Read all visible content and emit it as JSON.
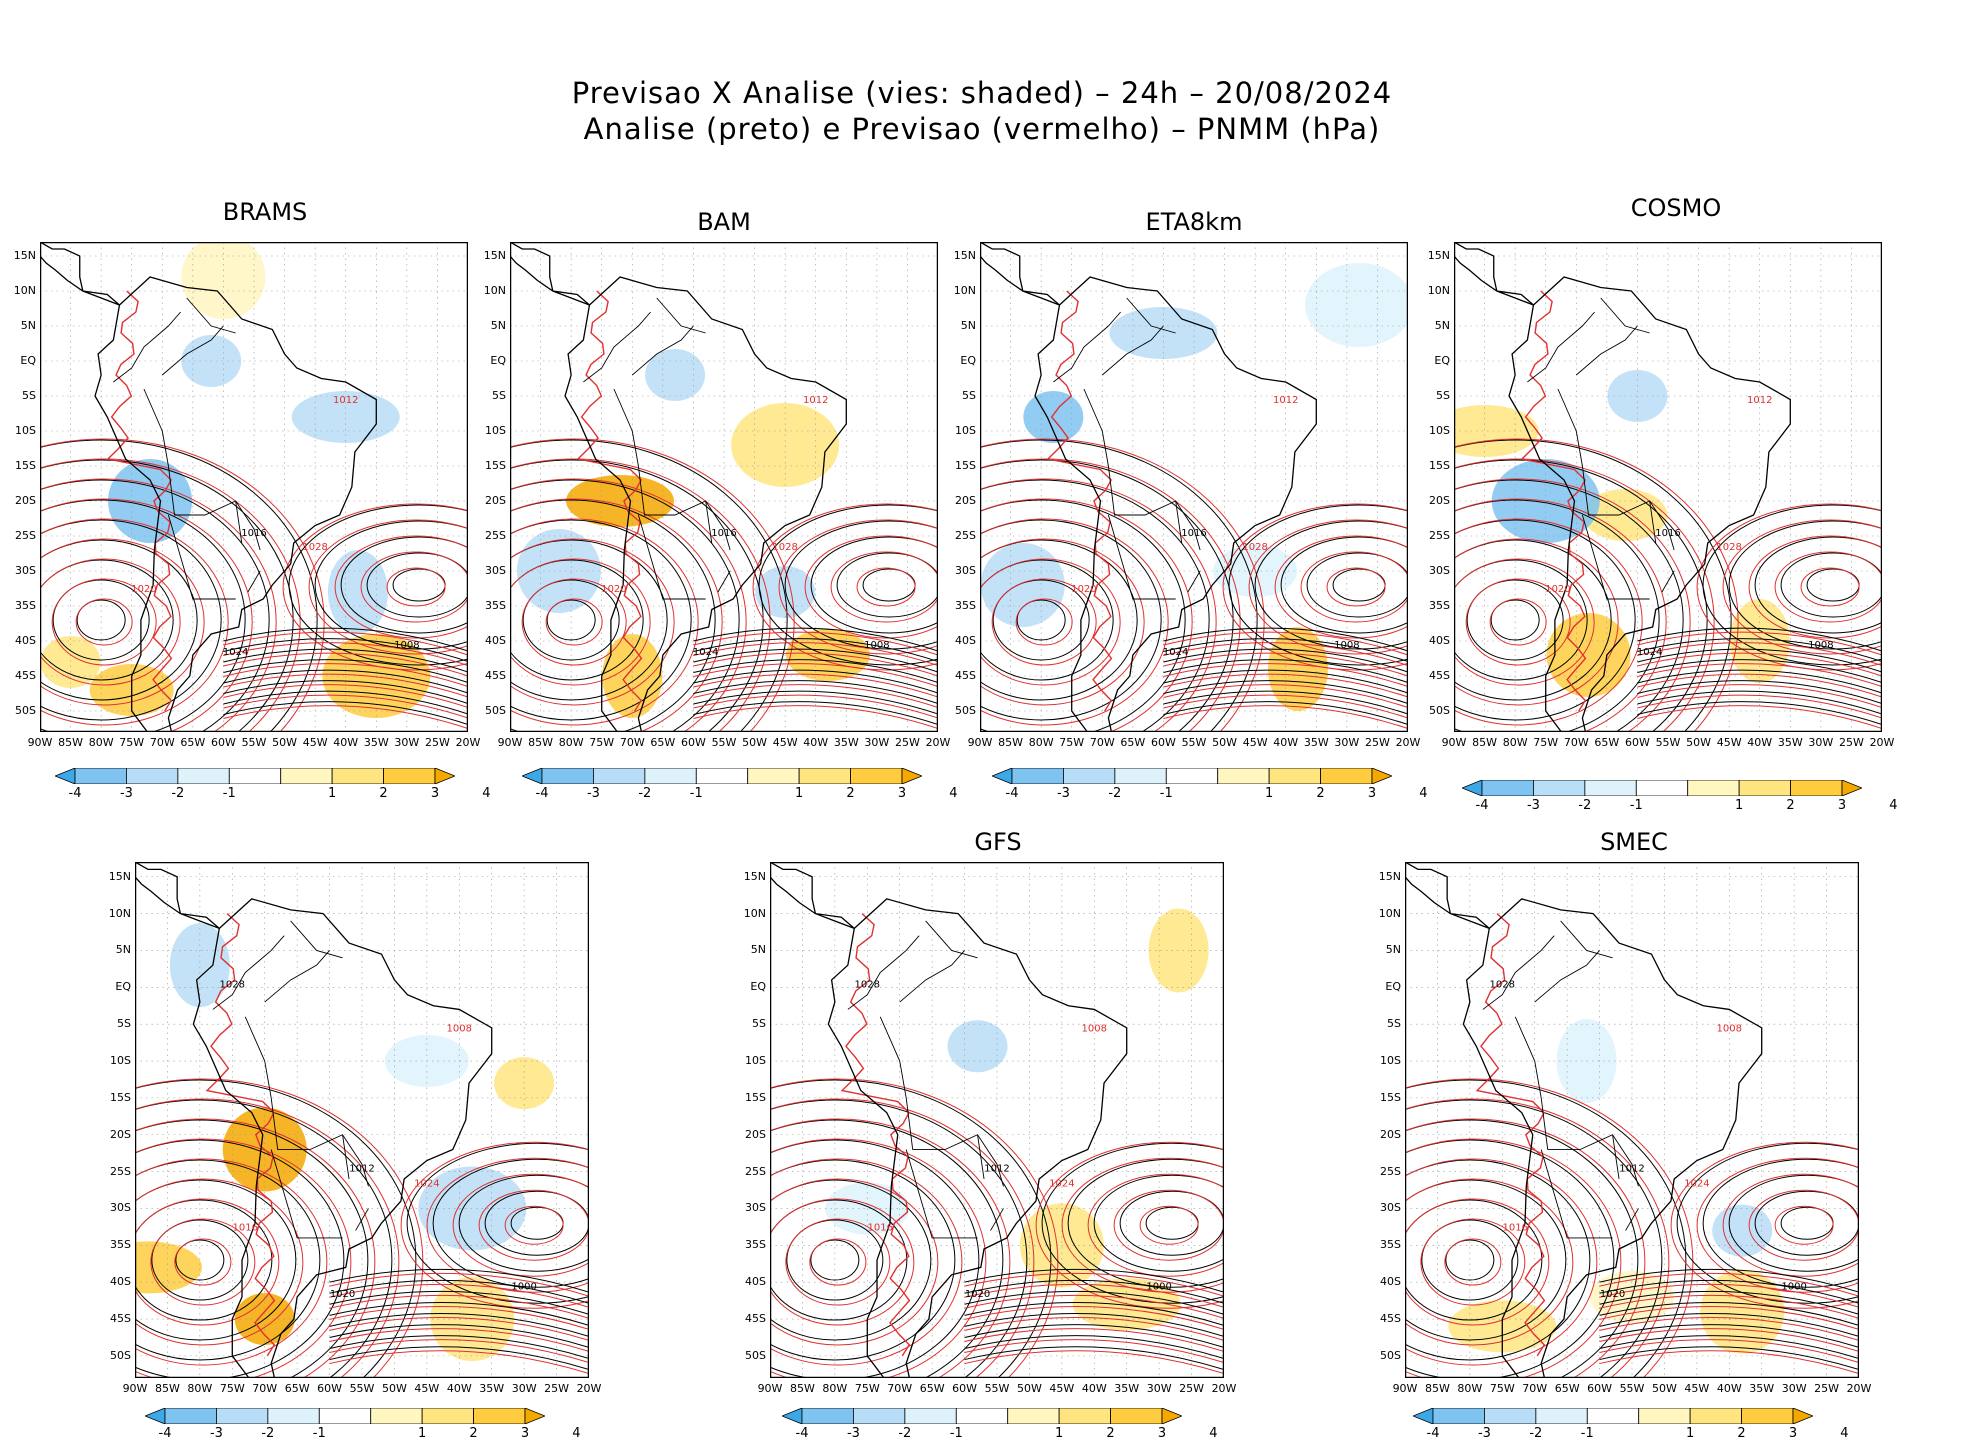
{
  "title_line1": "Previsao X Analise (vies: shaded) – 24h – 20/08/2024",
  "title_line2": "Analise (preto) e Previsao (vermelho) – PNMM (hPa)",
  "colors": {
    "analysis_contour": "#000000",
    "forecast_contour": "#e03030",
    "neg4": "#3ca8e8",
    "neg3": "#7fc3f0",
    "neg2": "#b8ddf6",
    "neg1": "#ddf2fb",
    "zero": "#ffffff",
    "pos1": "#fff6c0",
    "pos2": "#ffe580",
    "pos3": "#ffcc40",
    "pos4": "#f5a800"
  },
  "chart_data": {
    "type": "map-panels",
    "field": "PNMM bias (forecast minus analysis)",
    "units": "hPa",
    "lat_ticks": [
      "15N",
      "10N",
      "5N",
      "EQ",
      "5S",
      "10S",
      "15S",
      "20S",
      "25S",
      "30S",
      "35S",
      "40S",
      "45S",
      "50S"
    ],
    "lon_ticks": [
      "90W",
      "85W",
      "80W",
      "75W",
      "70W",
      "65W",
      "60W",
      "55W",
      "50W",
      "45W",
      "40W",
      "35W",
      "30W",
      "25W",
      "20W"
    ],
    "lat_range": [
      -53,
      17
    ],
    "lon_range": [
      -90,
      -20
    ],
    "colorbar": {
      "labels": [
        "-4",
        "-3",
        "-2",
        "-1",
        "1",
        "2",
        "3",
        "4"
      ],
      "bins": [
        -4,
        -3,
        -2,
        -1,
        1,
        2,
        3,
        4
      ]
    },
    "panels": [
      {
        "name": "BRAMS",
        "contour_labels": [
          "1008",
          "1012",
          "1016",
          "1020",
          "1024",
          "1028"
        ],
        "bias_regions": [
          {
            "lon": -62,
            "lat": 0,
            "bias": -2
          },
          {
            "lon": -72,
            "lat": -20,
            "bias": -3
          },
          {
            "lon": -40,
            "lat": -8,
            "bias": -2
          },
          {
            "lon": -38,
            "lat": -33,
            "bias": -2
          },
          {
            "lon": -75,
            "lat": -47,
            "bias": 3
          },
          {
            "lon": -35,
            "lat": -45,
            "bias": 3
          },
          {
            "lon": -85,
            "lat": -43,
            "bias": 2
          },
          {
            "lon": -60,
            "lat": 12,
            "bias": 1
          }
        ]
      },
      {
        "name": "BAM",
        "contour_labels": [
          "1008",
          "1012",
          "1016",
          "1020",
          "1024",
          "1028"
        ],
        "bias_regions": [
          {
            "lon": -63,
            "lat": -2,
            "bias": -2
          },
          {
            "lon": -82,
            "lat": -30,
            "bias": -2
          },
          {
            "lon": -72,
            "lat": -20,
            "bias": 4
          },
          {
            "lon": -70,
            "lat": -45,
            "bias": 3
          },
          {
            "lon": -38,
            "lat": -42,
            "bias": 3
          },
          {
            "lon": -45,
            "lat": -12,
            "bias": 2
          },
          {
            "lon": -45,
            "lat": -33,
            "bias": -2
          }
        ]
      },
      {
        "name": "ETA8km",
        "contour_labels": [
          "1008",
          "1012",
          "1016",
          "1020",
          "1024",
          "1028"
        ],
        "bias_regions": [
          {
            "lon": -78,
            "lat": -8,
            "bias": -3
          },
          {
            "lon": -83,
            "lat": -32,
            "bias": -2
          },
          {
            "lon": -60,
            "lat": 4,
            "bias": -2
          },
          {
            "lon": -38,
            "lat": -44,
            "bias": 3
          },
          {
            "lon": -45,
            "lat": -30,
            "bias": -1
          },
          {
            "lon": -28,
            "lat": 8,
            "bias": -1
          }
        ]
      },
      {
        "name": "COSMO",
        "contour_labels": [
          "1008",
          "1012",
          "1016",
          "1020",
          "1024",
          "1028"
        ],
        "bias_regions": [
          {
            "lon": -60,
            "lat": -5,
            "bias": -2
          },
          {
            "lon": -68,
            "lat": -42,
            "bias": 3
          },
          {
            "lon": -85,
            "lat": -10,
            "bias": 2
          },
          {
            "lon": -40,
            "lat": -40,
            "bias": 2
          },
          {
            "lon": -62,
            "lat": -22,
            "bias": 2
          },
          {
            "lon": -75,
            "lat": -20,
            "bias": -3
          }
        ]
      },
      {
        "name": "",
        "contour_labels": [
          "1000",
          "1008",
          "1012",
          "1016",
          "1020",
          "1024",
          "1028"
        ],
        "bias_regions": [
          {
            "lon": -70,
            "lat": -45,
            "bias": 4
          },
          {
            "lon": -70,
            "lat": -22,
            "bias": 4
          },
          {
            "lon": -88,
            "lat": -38,
            "bias": 3
          },
          {
            "lon": -80,
            "lat": 3,
            "bias": -2
          },
          {
            "lon": -45,
            "lat": -10,
            "bias": -1
          },
          {
            "lon": -38,
            "lat": -30,
            "bias": -2
          },
          {
            "lon": -30,
            "lat": -13,
            "bias": 2
          },
          {
            "lon": -38,
            "lat": -45,
            "bias": 2
          }
        ]
      },
      {
        "name": "GFS",
        "contour_labels": [
          "1000",
          "1008",
          "1012",
          "1016",
          "1020",
          "1024",
          "1028"
        ],
        "bias_regions": [
          {
            "lon": -58,
            "lat": -8,
            "bias": -2
          },
          {
            "lon": -45,
            "lat": -35,
            "bias": 2
          },
          {
            "lon": -35,
            "lat": -43,
            "bias": 2
          },
          {
            "lon": -27,
            "lat": 5,
            "bias": 2
          },
          {
            "lon": -75,
            "lat": -30,
            "bias": -1
          }
        ]
      },
      {
        "name": "SMEC",
        "contour_labels": [
          "1000",
          "1008",
          "1012",
          "1016",
          "1020",
          "1024",
          "1028"
        ],
        "bias_regions": [
          {
            "lon": -38,
            "lat": -33,
            "bias": -2
          },
          {
            "lon": -38,
            "lat": -44,
            "bias": 2
          },
          {
            "lon": -75,
            "lat": -46,
            "bias": 2
          },
          {
            "lon": -62,
            "lat": -10,
            "bias": -1
          },
          {
            "lon": -55,
            "lat": -42,
            "bias": 1
          }
        ]
      }
    ]
  }
}
